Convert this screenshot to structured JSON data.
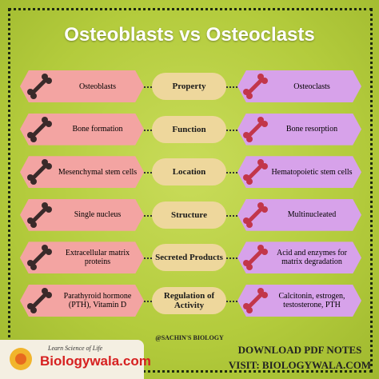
{
  "title": "Osteoblasts vs Osteoclasts",
  "rows": [
    {
      "left": "Osteoblasts",
      "property": "Property",
      "right": "Osteoclasts"
    },
    {
      "left": "Bone formation",
      "property": "Function",
      "right": "Bone resorption"
    },
    {
      "left": "Mesenchymal stem cells",
      "property": "Location",
      "right": "Hematopoietic stem cells"
    },
    {
      "left": "Single nucleus",
      "property": "Structure",
      "right": "Multinucleated"
    },
    {
      "left": "Extracellular matrix proteins",
      "property": "Secreted Products",
      "right": "Acid and enzymes for matrix degradation"
    },
    {
      "left": "Parathyroid hormone (PTH), Vitamin D",
      "property": "Regulation of Activity",
      "right": "Calcitonin, estrogen, testosterone, PTH"
    }
  ],
  "footer": {
    "credit": "@SACHIN'S BIOLOGY",
    "download": "DOWNLOAD PDF NOTES",
    "visit": "VISIT: BIOLOGYWALA.COM",
    "logo": "Biologywala.com",
    "tagline": "Learn Science of Life"
  }
}
